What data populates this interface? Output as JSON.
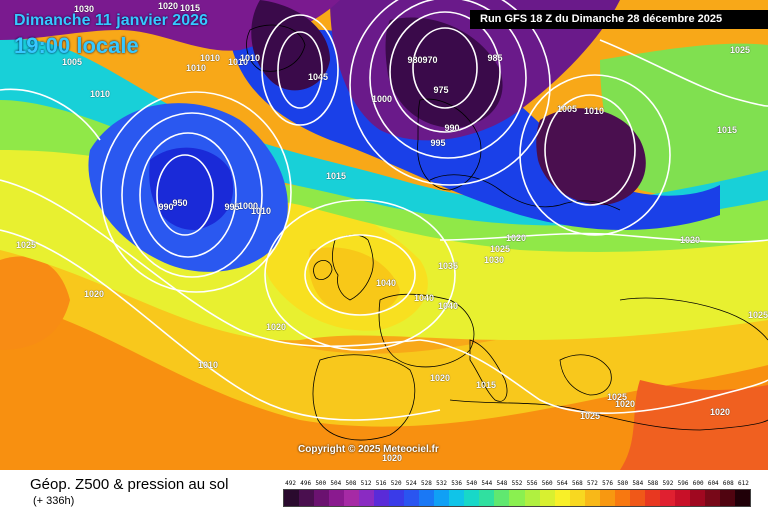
{
  "header": {
    "date": "Dimanche 11 janvier 2026",
    "time": "19:00 locale",
    "run": "Run GFS 18 Z du Dimanche 28 décembre 2025"
  },
  "map": {
    "copyright": "Copyright © 2025 Meteociel.fr",
    "isobar_labels": [
      "1030",
      "1020",
      "1015",
      "1005",
      "1010",
      "1010",
      "1010",
      "1010",
      "1010",
      "1045",
      "980",
      "970",
      "975",
      "985",
      "990",
      "995",
      "1000",
      "1005",
      "1010",
      "1025",
      "1020",
      "1025",
      "1015",
      "990",
      "950",
      "995",
      "1000",
      "1010",
      "1015",
      "1025",
      "1020",
      "1030",
      "1035",
      "1040",
      "1040",
      "1040",
      "1020",
      "1025",
      "1020",
      "1010",
      "1020",
      "1015",
      "1025",
      "1025",
      "1020",
      "1020",
      "1020"
    ]
  },
  "footer": {
    "field_title": "Géop. Z500 & pression au sol",
    "lead_time": "(+ 336h)"
  },
  "scale": {
    "labels": [
      "492",
      "496",
      "500",
      "504",
      "508",
      "512",
      "516",
      "520",
      "524",
      "528",
      "532",
      "536",
      "540",
      "544",
      "548",
      "552",
      "556",
      "560",
      "564",
      "568",
      "572",
      "576",
      "580",
      "584",
      "588",
      "592",
      "596",
      "600",
      "604",
      "608",
      "612"
    ],
    "colors": [
      "#2a0a2e",
      "#4a0f4f",
      "#6b1270",
      "#8a1a8f",
      "#a62aa5",
      "#8a2bc2",
      "#5a2bd8",
      "#3a3be8",
      "#2a55f0",
      "#1a78f5",
      "#10a0f5",
      "#10c4e8",
      "#18d8c8",
      "#30e0a0",
      "#60e870",
      "#8af050",
      "#b0f040",
      "#d8f030",
      "#f8f028",
      "#f8d820",
      "#f8b818",
      "#f89810",
      "#f87810",
      "#f05818",
      "#e83820",
      "#e02030",
      "#c81028",
      "#a00820",
      "#780818",
      "#500410",
      "#200008"
    ]
  }
}
